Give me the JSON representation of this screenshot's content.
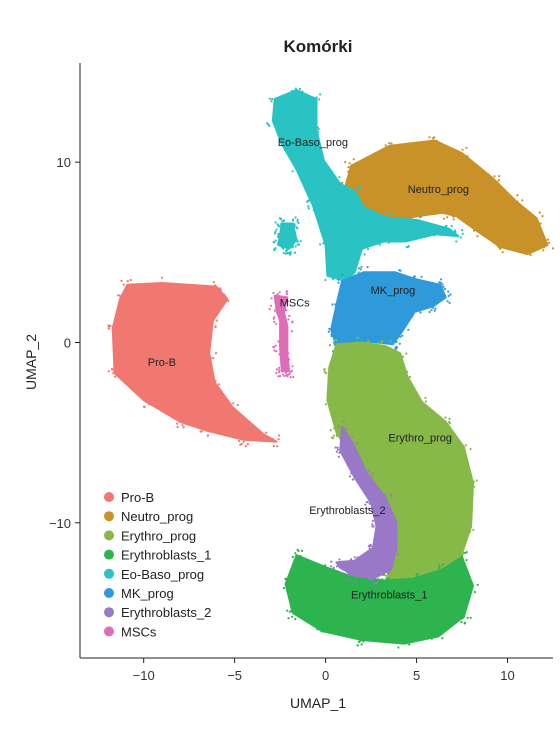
{
  "chart_data": {
    "type": "scatter",
    "title": "Komórki",
    "xlabel": "UMAP_1",
    "ylabel": "UMAP_2",
    "xlim": [
      -13.5,
      12.5
    ],
    "ylim": [
      -17.5,
      15.5
    ],
    "xticks": [
      -10,
      -5,
      0,
      5,
      10
    ],
    "yticks": [
      -10,
      0,
      10
    ],
    "xtick_labels": [
      "−10",
      "−5",
      "0",
      "5",
      "10"
    ],
    "ytick_labels": [
      "−10",
      "0",
      "10"
    ],
    "grid": false,
    "legend_position": "bottom-left",
    "series": [
      {
        "name": "Pro-B",
        "color": "#F07870"
      },
      {
        "name": "Neutro_prog",
        "color": "#C99228"
      },
      {
        "name": "Erythro_prog",
        "color": "#86B948"
      },
      {
        "name": "Erythroblasts_1",
        "color": "#2DB44E"
      },
      {
        "name": "Eo-Baso_prog",
        "color": "#29C3C3"
      },
      {
        "name": "MK_prog",
        "color": "#2F9ADB"
      },
      {
        "name": "Erythroblasts_2",
        "color": "#9878C7"
      },
      {
        "name": "MSCs",
        "color": "#E06CB8"
      }
    ],
    "cluster_labels": [
      {
        "text": "Pro-B",
        "x": -9.0,
        "y": -1.3
      },
      {
        "text": "Neutro_prog",
        "x": 6.2,
        "y": 8.3
      },
      {
        "text": "Erythro_prog",
        "x": 5.2,
        "y": -5.5
      },
      {
        "text": "Erythroblasts_1",
        "x": 3.5,
        "y": -14.2
      },
      {
        "text": "Eo-Baso_prog",
        "x": -0.7,
        "y": 10.9
      },
      {
        "text": "MK_prog",
        "x": 3.7,
        "y": 2.7
      },
      {
        "text": "Erythroblasts_2",
        "x": 1.2,
        "y": -9.5
      },
      {
        "text": "MSCs",
        "x": -1.7,
        "y": 2.0
      }
    ]
  }
}
